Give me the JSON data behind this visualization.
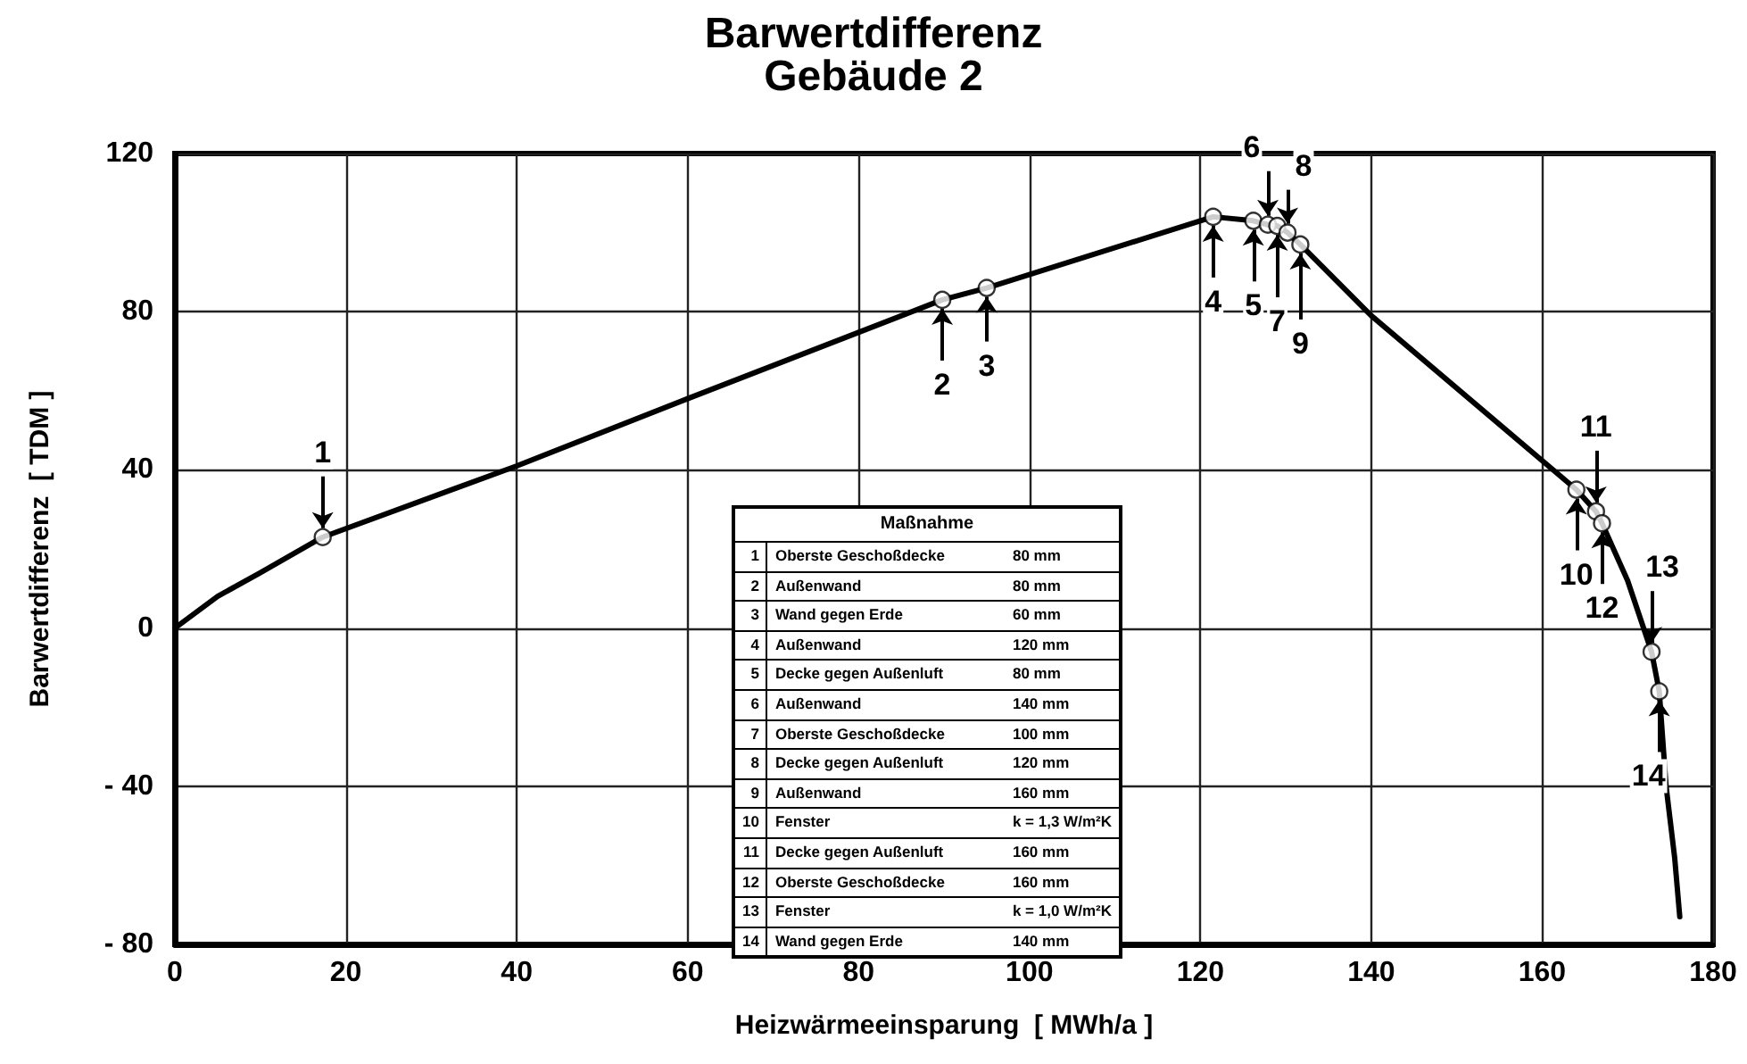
{
  "chart_data": {
    "type": "line",
    "title": "Barwertdifferenz",
    "subtitle": "Gebäude 2",
    "xlabel": "Heizwärmeeinsparung  [ MWh/a ]",
    "ylabel": "Barwertdifferenz  [ TDM ]",
    "xlim": [
      0,
      180
    ],
    "xticks": [
      0,
      20,
      40,
      60,
      80,
      100,
      120,
      140,
      160,
      180
    ],
    "ylim": [
      -80,
      120
    ],
    "yticks": [
      {
        "value": -80,
        "label": "- 80"
      },
      {
        "value": -40,
        "label": "- 40"
      },
      0,
      40,
      80,
      120
    ],
    "grid": true,
    "series": [
      {
        "type": "line",
        "color": "#000000",
        "marker": "none",
        "x": [
          0,
          5,
          10,
          17.3,
          40,
          60,
          89.8,
          95,
          121.5,
          126.2,
          127.9,
          129,
          130.2,
          131.7,
          140,
          164,
          166.3,
          167,
          170,
          172.8,
          173.7,
          174.5,
          175.5,
          176.1
        ],
        "values": [
          0,
          8,
          14,
          23,
          41,
          58,
          83,
          86,
          104,
          103,
          102,
          101.7,
          100,
          97,
          79,
          35,
          29.5,
          26.5,
          12,
          -6,
          -16,
          -40,
          -58,
          -73
        ]
      },
      {
        "type": "scatter",
        "color": "#000000",
        "marker": "circle",
        "x": [
          17.3,
          89.8,
          95,
          121.5,
          126.2,
          127.9,
          129,
          130.2,
          131.7,
          164,
          166.3,
          167,
          172.8,
          173.7
        ],
        "values": [
          23,
          83,
          86,
          104,
          103,
          102,
          101.7,
          100,
          97,
          35,
          29.5,
          26.5,
          -6,
          -16
        ]
      }
    ],
    "annotations": [
      {
        "text": "1",
        "x": 17.3,
        "y": 23
      },
      {
        "text": "2",
        "x": 89.8,
        "y": 83
      },
      {
        "text": "3",
        "x": 95,
        "y": 86
      },
      {
        "text": "4",
        "x": 121.5,
        "y": 104
      },
      {
        "text": "5",
        "x": 126.2,
        "y": 103
      },
      {
        "text": "6",
        "x": 127.9,
        "y": 102
      },
      {
        "text": "7",
        "x": 129,
        "y": 101.7
      },
      {
        "text": "8",
        "x": 130.2,
        "y": 100
      },
      {
        "text": "9",
        "x": 131.7,
        "y": 97
      },
      {
        "text": "10",
        "x": 164,
        "y": 35
      },
      {
        "text": "11",
        "x": 166.3,
        "y": 29.5
      },
      {
        "text": "12",
        "x": 167,
        "y": 26.5
      },
      {
        "text": "13",
        "x": 172.8,
        "y": -6
      },
      {
        "text": "14",
        "x": 173.7,
        "y": -16
      },
      "Maßnahme",
      "1 Oberste Geschoßdecke 80 mm",
      "2 Außenwand 80 mm",
      "3 Wand gegen Erde 60 mm",
      "4 Außenwand 120 mm",
      "5 Decke gegen Außenluft 80 mm",
      "6 Außenwand 140 mm",
      "7 Oberste Geschoßdecke 100 mm",
      "8 Decke gegen Außenluft 120 mm",
      "9 Außenwand 160 mm",
      "10 Fenster k = 1,3 W/m²K",
      "11 Decke gegen Außenluft 160 mm",
      "12 Oberste Geschoßdecke 160 mm",
      "13 Fenster k = 1,0 W/m²K",
      "14 Wand gegen Erde 140 mm"
    ]
  }
}
